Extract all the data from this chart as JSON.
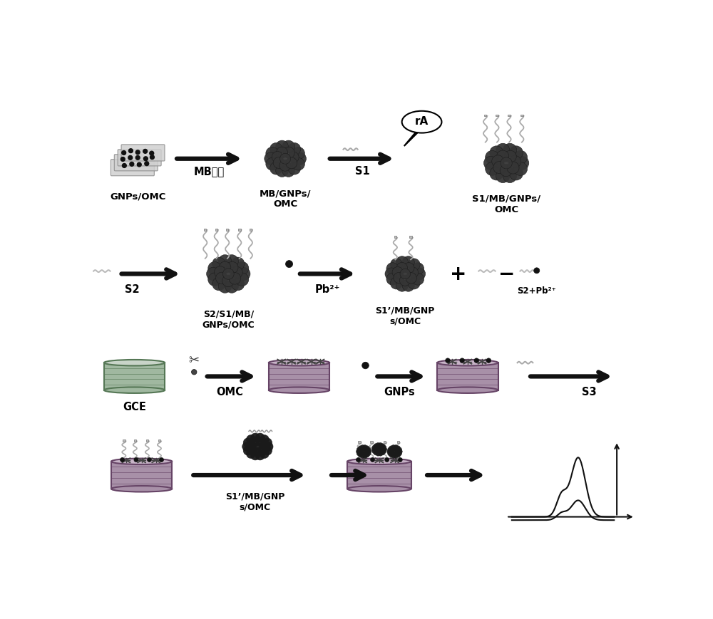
{
  "bg_color": "#ffffff",
  "fig_width": 10.0,
  "fig_height": 8.7,
  "dpi": 100,
  "labels": {
    "gnps_omc": "GNPs/OMC",
    "mb_stain": "MB染色",
    "mb_gnps_omc": "MB/GNPs/\nOMC",
    "s1": "S1",
    "s1_mb_gnps_omc": "S1/MB/GNPs/\nOMC",
    "rA": "rA",
    "s2": "S2",
    "s2_s1_mb_gnps_omc": "S2/S1/MB/\nGNPs/OMC",
    "pb2plus": "Pb²⁺",
    "s1p_mb_gnps_omc": "S1’/MB/GNP\ns/OMC",
    "s2_pb2plus": "S2+Pb²⁺",
    "gce": "GCE",
    "omc": "OMC",
    "gnps": "GNPs",
    "s3": "S3",
    "s1p_mb_gnps_omc2": "S1’/MB/GNP\ns/OMC"
  },
  "cluster_color": "#3a3a3a",
  "cluster_edge": "#111111",
  "gce_top": "#c8d4c8",
  "gce_side": "#a0b8a0",
  "gce_edge": "#557755",
  "omc_top": "#c8b4c8",
  "omc_side": "#a890a8",
  "omc_edge": "#664466",
  "strand_color": "#999999",
  "dot_color": "#111111",
  "arrow_color": "#111111"
}
